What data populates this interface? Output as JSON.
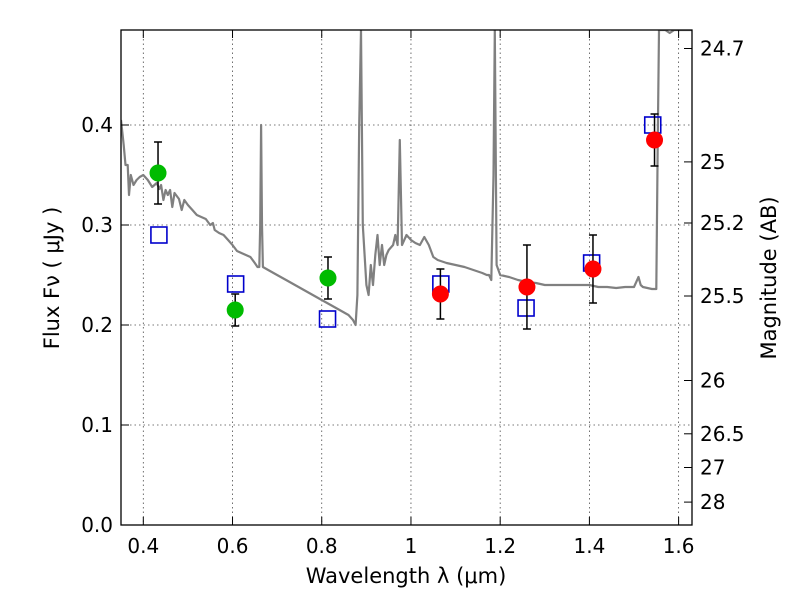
{
  "chart_data": {
    "type": "scatter",
    "xlabel": "Wavelength  λ (μm)",
    "ylabel": "Flux  Fν  ( μJy )",
    "y2label": "Magnitude (AB)",
    "xlim": [
      0.35,
      1.63
    ],
    "ylim": [
      0.0,
      0.495
    ],
    "grid": true,
    "x_ticks": [
      0.4,
      0.6,
      0.8,
      1.0,
      1.2,
      1.4,
      1.6
    ],
    "x_tick_labels": [
      "0.4",
      "0.6",
      "0.8",
      "1",
      "1.2",
      "1.4",
      "1.6"
    ],
    "y_ticks": [
      0.0,
      0.1,
      0.2,
      0.3,
      0.4
    ],
    "y_tick_labels": [
      "0.0",
      "0.1",
      "0.2",
      "0.3",
      "0.4"
    ],
    "mag_ticks": [
      {
        "label": "24.7",
        "flux": 0.4765
      },
      {
        "label": "25",
        "flux": 0.3631
      },
      {
        "label": "25.2",
        "flux": 0.302
      },
      {
        "label": "25.5",
        "flux": 0.229
      },
      {
        "label": "26",
        "flux": 0.1445
      },
      {
        "label": "26.5",
        "flux": 0.0912
      },
      {
        "label": "27",
        "flux": 0.0575
      },
      {
        "label": "28",
        "flux": 0.0229
      }
    ],
    "series": [
      {
        "name": "model_spectrum",
        "kind": "line",
        "color": "#808080",
        "points": [
          [
            0.35,
            0.405
          ],
          [
            0.356,
            0.38
          ],
          [
            0.36,
            0.36
          ],
          [
            0.365,
            0.36
          ],
          [
            0.368,
            0.33
          ],
          [
            0.372,
            0.35
          ],
          [
            0.378,
            0.34
          ],
          [
            0.385,
            0.345
          ],
          [
            0.392,
            0.348
          ],
          [
            0.4,
            0.35
          ],
          [
            0.41,
            0.345
          ],
          [
            0.42,
            0.338
          ],
          [
            0.43,
            0.342
          ],
          [
            0.436,
            0.336
          ],
          [
            0.44,
            0.34
          ],
          [
            0.445,
            0.325
          ],
          [
            0.45,
            0.335
          ],
          [
            0.455,
            0.33
          ],
          [
            0.46,
            0.335
          ],
          [
            0.465,
            0.318
          ],
          [
            0.47,
            0.332
          ],
          [
            0.48,
            0.326
          ],
          [
            0.486,
            0.315
          ],
          [
            0.492,
            0.325
          ],
          [
            0.5,
            0.32
          ],
          [
            0.51,
            0.315
          ],
          [
            0.52,
            0.31
          ],
          [
            0.53,
            0.308
          ],
          [
            0.54,
            0.306
          ],
          [
            0.55,
            0.3
          ],
          [
            0.556,
            0.302
          ],
          [
            0.56,
            0.295
          ],
          [
            0.57,
            0.292
          ],
          [
            0.58,
            0.29
          ],
          [
            0.59,
            0.285
          ],
          [
            0.6,
            0.28
          ],
          [
            0.61,
            0.274
          ],
          [
            0.62,
            0.272
          ],
          [
            0.63,
            0.27
          ],
          [
            0.64,
            0.268
          ],
          [
            0.65,
            0.262
          ],
          [
            0.656,
            0.258
          ],
          [
            0.66,
            0.258
          ],
          [
            0.662,
            0.3
          ],
          [
            0.664,
            0.4
          ],
          [
            0.666,
            0.3
          ],
          [
            0.668,
            0.258
          ],
          [
            0.68,
            0.255
          ],
          [
            0.7,
            0.25
          ],
          [
            0.72,
            0.245
          ],
          [
            0.74,
            0.24
          ],
          [
            0.76,
            0.235
          ],
          [
            0.78,
            0.23
          ],
          [
            0.8,
            0.225
          ],
          [
            0.82,
            0.22
          ],
          [
            0.84,
            0.215
          ],
          [
            0.86,
            0.21
          ],
          [
            0.87,
            0.205
          ],
          [
            0.876,
            0.2
          ],
          [
            0.88,
            0.23
          ],
          [
            0.884,
            0.4
          ],
          [
            0.888,
            0.495
          ],
          [
            0.892,
            0.3
          ],
          [
            0.9,
            0.24
          ],
          [
            0.905,
            0.23
          ],
          [
            0.91,
            0.26
          ],
          [
            0.915,
            0.24
          ],
          [
            0.92,
            0.27
          ],
          [
            0.925,
            0.29
          ],
          [
            0.93,
            0.26
          ],
          [
            0.935,
            0.28
          ],
          [
            0.94,
            0.26
          ],
          [
            0.945,
            0.27
          ],
          [
            0.95,
            0.275
          ],
          [
            0.96,
            0.28
          ],
          [
            0.965,
            0.29
          ],
          [
            0.97,
            0.28
          ],
          [
            0.975,
            0.385
          ],
          [
            0.98,
            0.28
          ],
          [
            0.99,
            0.29
          ],
          [
            1.0,
            0.285
          ],
          [
            1.01,
            0.282
          ],
          [
            1.02,
            0.28
          ],
          [
            1.03,
            0.288
          ],
          [
            1.04,
            0.28
          ],
          [
            1.05,
            0.268
          ],
          [
            1.06,
            0.265
          ],
          [
            1.08,
            0.262
          ],
          [
            1.1,
            0.26
          ],
          [
            1.12,
            0.258
          ],
          [
            1.14,
            0.255
          ],
          [
            1.16,
            0.252
          ],
          [
            1.17,
            0.25
          ],
          [
            1.175,
            0.25
          ],
          [
            1.18,
            0.245
          ],
          [
            1.185,
            0.35
          ],
          [
            1.188,
            0.495
          ],
          [
            1.192,
            0.26
          ],
          [
            1.196,
            0.255
          ],
          [
            1.2,
            0.25
          ],
          [
            1.22,
            0.248
          ],
          [
            1.24,
            0.245
          ],
          [
            1.26,
            0.243
          ],
          [
            1.28,
            0.242
          ],
          [
            1.3,
            0.24
          ],
          [
            1.32,
            0.24
          ],
          [
            1.34,
            0.24
          ],
          [
            1.36,
            0.24
          ],
          [
            1.38,
            0.24
          ],
          [
            1.4,
            0.24
          ],
          [
            1.42,
            0.238
          ],
          [
            1.44,
            0.238
          ],
          [
            1.46,
            0.237
          ],
          [
            1.48,
            0.238
          ],
          [
            1.5,
            0.238
          ],
          [
            1.51,
            0.248
          ],
          [
            1.515,
            0.24
          ],
          [
            1.52,
            0.238
          ],
          [
            1.54,
            0.236
          ],
          [
            1.55,
            0.236
          ],
          [
            1.553,
            0.38
          ],
          [
            1.556,
            0.495
          ],
          [
            1.57,
            0.495
          ],
          [
            1.58,
            0.492
          ],
          [
            1.59,
            0.495
          ],
          [
            1.6,
            0.495
          ],
          [
            1.63,
            0.495
          ]
        ]
      },
      {
        "name": "model_photometry",
        "kind": "open_squares",
        "color": "#0000cc",
        "points": [
          [
            0.435,
            0.29
          ],
          [
            0.607,
            0.241
          ],
          [
            0.813,
            0.206
          ],
          [
            1.067,
            0.241
          ],
          [
            1.258,
            0.217
          ],
          [
            1.405,
            0.262
          ],
          [
            1.542,
            0.4
          ]
        ]
      },
      {
        "name": "optical_observed",
        "kind": "filled_circles",
        "color": "#00bb00",
        "points": [
          {
            "x": 0.433,
            "y": 0.352,
            "err": 0.031
          },
          {
            "x": 0.606,
            "y": 0.215,
            "err": 0.016
          },
          {
            "x": 0.814,
            "y": 0.247,
            "err": 0.021
          }
        ]
      },
      {
        "name": "nir_observed",
        "kind": "filled_circles",
        "color": "#ff0000",
        "points": [
          {
            "x": 1.066,
            "y": 0.231,
            "err": 0.025
          },
          {
            "x": 1.26,
            "y": 0.238,
            "err": 0.042
          },
          {
            "x": 1.408,
            "y": 0.256,
            "err": 0.034
          },
          {
            "x": 1.546,
            "y": 0.385,
            "err": 0.026
          }
        ]
      }
    ]
  }
}
